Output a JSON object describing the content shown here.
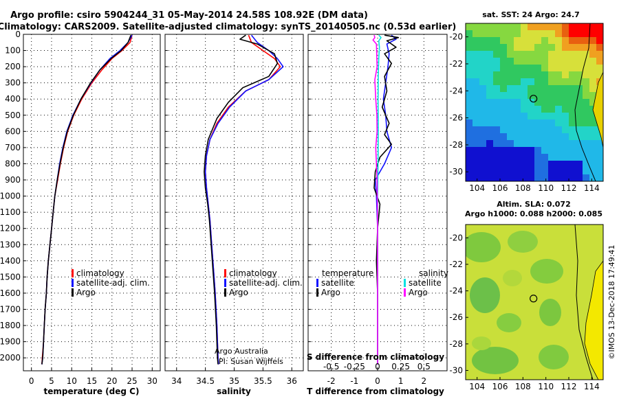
{
  "header": {
    "title_line1": "Argo profile: csiro 5904244_31 05-May-2014 24.58S 108.92E (DM data)",
    "title_line2": "Climatology: CARS2009. Satellite-adjusted climatology: synTS_20140505.nc (0.53d earlier)"
  },
  "colors": {
    "climatology": "#ff0000",
    "satellite": "#1010ff",
    "argo": "#000000",
    "sat_salinity": "#00e0e0",
    "argo_salinity": "#ff00ff"
  },
  "legend": {
    "climatology": "climatology",
    "satellite": "satellite-adj. clim.",
    "argo": "Argo",
    "diff_temperature": "temperature",
    "diff_salinity": "salinity",
    "diff_satellite": "satellite",
    "diff_argo": "Argo"
  },
  "credits": {
    "line1": "Argo Australia",
    "line2": "PI: Susan Wijffels",
    "imos": "©IMOS 13-Dec-2018 17:49:41"
  },
  "maps": {
    "sst_title": "sat. SST: 24 Argo: 24.7",
    "sla_title1": "Altim. SLA: 0.072",
    "sla_title2": "Argo h1000: 0.088 h2000: 0.085",
    "lon_ticks": [
      "104",
      "106",
      "108",
      "110",
      "112",
      "114"
    ],
    "lat_ticks": [
      "-20",
      "-22",
      "-24",
      "-26",
      "-28",
      "-30"
    ],
    "marker": {
      "lon": 108.92,
      "lat": -24.58
    }
  },
  "chart_data": [
    {
      "type": "line",
      "xlabel": "temperature (deg C)",
      "ylabel": "",
      "xlim": [
        -2,
        32
      ],
      "ylim": [
        2080,
        0
      ],
      "x_ticks": [
        "0",
        "5",
        "10",
        "15",
        "20",
        "25",
        "30"
      ],
      "y_ticks": [
        "0",
        "100",
        "200",
        "300",
        "400",
        "500",
        "600",
        "700",
        "800",
        "900",
        "1000",
        "1100",
        "1200",
        "1300",
        "1400",
        "1500",
        "1600",
        "1700",
        "1800",
        "1900",
        "2000"
      ],
      "grid": true,
      "series": [
        {
          "name": "climatology",
          "points": [
            [
              25.0,
              5
            ],
            [
              24.5,
              50
            ],
            [
              22.5,
              100
            ],
            [
              20.0,
              150
            ],
            [
              17.5,
              220
            ],
            [
              15.0,
              300
            ],
            [
              12.5,
              400
            ],
            [
              10.5,
              500
            ],
            [
              9.0,
              600
            ],
            [
              8.0,
              700
            ],
            [
              7.2,
              800
            ],
            [
              6.5,
              900
            ],
            [
              5.8,
              1000
            ],
            [
              5.4,
              1100
            ],
            [
              5.0,
              1200
            ],
            [
              4.6,
              1300
            ],
            [
              4.2,
              1400
            ],
            [
              3.9,
              1500
            ],
            [
              3.7,
              1600
            ],
            [
              3.4,
              1700
            ],
            [
              3.2,
              1800
            ],
            [
              3.0,
              1900
            ],
            [
              2.7,
              2000
            ],
            [
              2.6,
              2040
            ]
          ]
        },
        {
          "name": "satellite-adj. clim.",
          "points": [
            [
              25.0,
              5
            ],
            [
              24.0,
              50
            ],
            [
              22.0,
              100
            ],
            [
              19.5,
              150
            ],
            [
              17.0,
              220
            ],
            [
              14.8,
              300
            ],
            [
              12.3,
              400
            ],
            [
              10.3,
              500
            ],
            [
              8.8,
              600
            ],
            [
              7.8,
              700
            ],
            [
              7.0,
              800
            ],
            [
              6.4,
              900
            ],
            [
              5.8,
              1000
            ],
            [
              5.4,
              1100
            ],
            [
              5.0,
              1200
            ],
            [
              4.6,
              1300
            ],
            [
              4.2,
              1400
            ],
            [
              3.9,
              1500
            ],
            [
              3.7,
              1600
            ],
            [
              3.4,
              1700
            ],
            [
              3.2,
              1800
            ],
            [
              3.0,
              1900
            ],
            [
              2.8,
              2000
            ],
            [
              2.6,
              2040
            ]
          ]
        },
        {
          "name": "Argo",
          "points": [
            [
              24.7,
              5
            ],
            [
              24.0,
              50
            ],
            [
              22.3,
              100
            ],
            [
              19.8,
              150
            ],
            [
              17.0,
              220
            ],
            [
              14.7,
              300
            ],
            [
              12.3,
              400
            ],
            [
              10.4,
              500
            ],
            [
              8.9,
              600
            ],
            [
              7.9,
              700
            ],
            [
              7.1,
              800
            ],
            [
              6.4,
              900
            ],
            [
              5.8,
              1000
            ],
            [
              5.4,
              1100
            ],
            [
              5.0,
              1200
            ],
            [
              4.6,
              1300
            ],
            [
              4.2,
              1400
            ],
            [
              3.9,
              1500
            ],
            [
              3.7,
              1600
            ],
            [
              3.4,
              1700
            ],
            [
              3.2,
              1800
            ],
            [
              3.0,
              1900
            ],
            [
              2.8,
              2000
            ],
            [
              2.6,
              2040
            ]
          ]
        }
      ]
    },
    {
      "type": "line",
      "xlabel": "salinity",
      "ylabel": "",
      "xlim": [
        33.8,
        36.2
      ],
      "ylim": [
        2080,
        0
      ],
      "x_ticks": [
        "34",
        "34.5",
        "35",
        "35.5",
        "36"
      ],
      "grid": true,
      "series": [
        {
          "name": "climatology",
          "points": [
            [
              35.25,
              5
            ],
            [
              35.3,
              50
            ],
            [
              35.5,
              100
            ],
            [
              35.7,
              150
            ],
            [
              35.8,
              200
            ],
            [
              35.6,
              280
            ],
            [
              35.2,
              350
            ],
            [
              34.9,
              450
            ],
            [
              34.7,
              550
            ],
            [
              34.58,
              650
            ],
            [
              34.52,
              750
            ],
            [
              34.5,
              850
            ],
            [
              34.52,
              950
            ],
            [
              34.55,
              1050
            ],
            [
              34.58,
              1150
            ],
            [
              34.61,
              1300
            ],
            [
              34.64,
              1450
            ],
            [
              34.67,
              1600
            ],
            [
              34.7,
              1800
            ],
            [
              34.72,
              2000
            ],
            [
              34.73,
              2040
            ]
          ]
        },
        {
          "name": "satellite-adj. clim.",
          "points": [
            [
              35.3,
              5
            ],
            [
              35.4,
              50
            ],
            [
              35.6,
              100
            ],
            [
              35.75,
              150
            ],
            [
              35.85,
              200
            ],
            [
              35.6,
              280
            ],
            [
              35.2,
              350
            ],
            [
              34.92,
              450
            ],
            [
              34.72,
              550
            ],
            [
              34.58,
              650
            ],
            [
              34.52,
              750
            ],
            [
              34.5,
              850
            ],
            [
              34.52,
              950
            ],
            [
              34.55,
              1050
            ],
            [
              34.58,
              1150
            ],
            [
              34.61,
              1300
            ],
            [
              34.64,
              1450
            ],
            [
              34.67,
              1600
            ],
            [
              34.7,
              1800
            ],
            [
              34.72,
              2000
            ],
            [
              34.73,
              2040
            ]
          ]
        },
        {
          "name": "Argo",
          "points": [
            [
              35.2,
              5
            ],
            [
              35.1,
              30
            ],
            [
              35.4,
              60
            ],
            [
              35.7,
              120
            ],
            [
              35.75,
              180
            ],
            [
              35.6,
              260
            ],
            [
              35.15,
              330
            ],
            [
              34.9,
              420
            ],
            [
              34.7,
              520
            ],
            [
              34.55,
              650
            ],
            [
              34.5,
              750
            ],
            [
              34.48,
              850
            ],
            [
              34.5,
              950
            ],
            [
              34.54,
              1050
            ],
            [
              34.57,
              1150
            ],
            [
              34.6,
              1300
            ],
            [
              34.63,
              1450
            ],
            [
              34.66,
              1600
            ],
            [
              34.69,
              1800
            ],
            [
              34.71,
              2000
            ],
            [
              34.72,
              2040
            ]
          ]
        }
      ]
    },
    {
      "type": "line",
      "xlabel": "T difference from climatology",
      "ylabel": "",
      "title": "S difference from climatology",
      "xlim": [
        -3,
        3
      ],
      "ylim": [
        2080,
        0
      ],
      "x_ticks": [
        "-2",
        "-1",
        "0",
        "1",
        "2"
      ],
      "x_ticks_top": [
        "-0.5",
        "-0.25",
        "0",
        "0.25",
        "0.5"
      ],
      "grid": true,
      "series": [
        {
          "name": "temperature satellite",
          "points": [
            [
              0.6,
              5
            ],
            [
              0.8,
              30
            ],
            [
              0.4,
              60
            ],
            [
              0.5,
              120
            ],
            [
              0.45,
              200
            ],
            [
              0.35,
              300
            ],
            [
              0.25,
              400
            ],
            [
              0.35,
              500
            ],
            [
              0.4,
              600
            ],
            [
              0.6,
              700
            ],
            [
              0.3,
              800
            ],
            [
              -0.1,
              900
            ],
            [
              -0.05,
              1000
            ],
            [
              0.0,
              1200
            ],
            [
              0.0,
              1500
            ],
            [
              0.0,
              1800
            ],
            [
              0.0,
              2040
            ]
          ]
        },
        {
          "name": "temperature Argo",
          "points": [
            [
              0.3,
              5
            ],
            [
              0.9,
              20
            ],
            [
              0.4,
              40
            ],
            [
              0.8,
              80
            ],
            [
              0.3,
              120
            ],
            [
              0.6,
              180
            ],
            [
              0.3,
              260
            ],
            [
              0.4,
              350
            ],
            [
              0.2,
              450
            ],
            [
              0.5,
              550
            ],
            [
              0.3,
              620
            ],
            [
              0.6,
              680
            ],
            [
              0.1,
              760
            ],
            [
              -0.1,
              850
            ],
            [
              -0.15,
              950
            ],
            [
              0.1,
              1050
            ],
            [
              0.0,
              1200
            ],
            [
              -0.05,
              1400
            ],
            [
              0.0,
              1600
            ],
            [
              0.0,
              2040
            ]
          ]
        },
        {
          "name": "salinity satellite",
          "points": [
            [
              0.05,
              5
            ],
            [
              0.15,
              20
            ],
            [
              0.05,
              40
            ],
            [
              0.08,
              80
            ],
            [
              0.05,
              150
            ],
            [
              0.03,
              250
            ],
            [
              0.02,
              400
            ],
            [
              0.03,
              600
            ],
            [
              0.02,
              800
            ],
            [
              0.0,
              1000
            ],
            [
              0.0,
              1400
            ],
            [
              0.0,
              2040
            ]
          ]
        },
        {
          "name": "salinity Argo",
          "points": [
            [
              -0.15,
              5
            ],
            [
              -0.12,
              20
            ],
            [
              -0.2,
              35
            ],
            [
              -0.05,
              60
            ],
            [
              -0.02,
              200
            ],
            [
              -0.12,
              280
            ],
            [
              -0.08,
              400
            ],
            [
              -0.03,
              500
            ],
            [
              -0.02,
              600
            ],
            [
              -0.08,
              700
            ],
            [
              -0.05,
              800
            ],
            [
              -0.02,
              900
            ],
            [
              0.0,
              1200
            ],
            [
              0.0,
              2040
            ]
          ]
        }
      ]
    }
  ]
}
